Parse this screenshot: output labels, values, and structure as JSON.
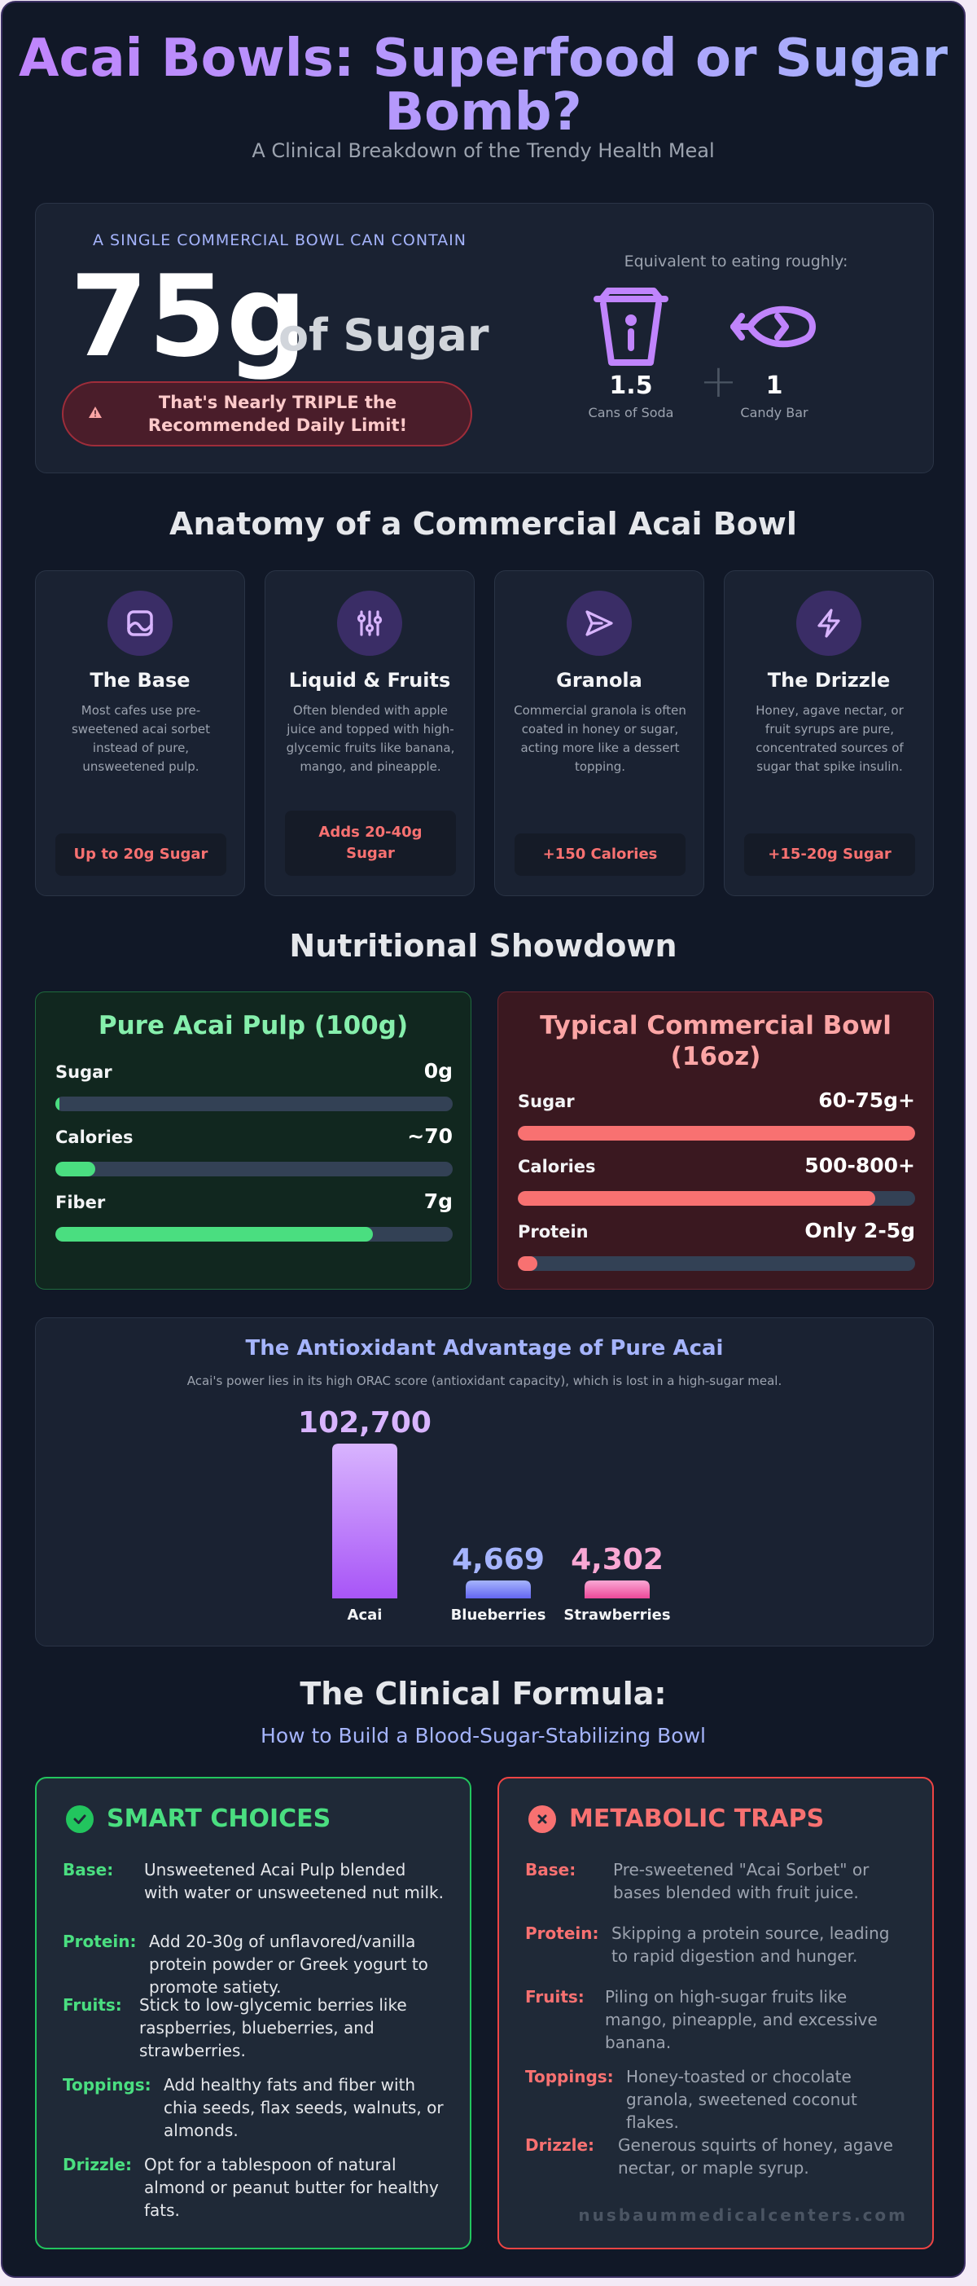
{
  "header": {
    "title": "Acai Bowls: Superfood or Sugar Bomb?",
    "subtitle": "A Clinical Breakdown of the Trendy Health Meal"
  },
  "hero": {
    "kicker": "A SINGLE COMMERCIAL BOWL CAN CONTAIN",
    "amount": "75g",
    "unit": "of Sugar",
    "warning": "That's Nearly TRIPLE the Recommended Daily Limit!",
    "equivalent_label": "Equivalent to eating roughly:",
    "equivalents": [
      {
        "icon": "soda-cup-icon",
        "value": "1.5",
        "label": "Cans of Soda"
      },
      {
        "icon": "candy-icon",
        "value": "1",
        "label": "Candy Bar"
      }
    ]
  },
  "anatomy": {
    "title": "Anatomy of a Commercial Acai Bowl",
    "cards": [
      {
        "icon": "base-icon",
        "title": "The Base",
        "desc": "Most cafes use pre-sweetened acai sorbet instead of pure, unsweetened pulp.",
        "tag": "Up to 20g Sugar"
      },
      {
        "icon": "sliders-icon",
        "title": "Liquid & Fruits",
        "desc": "Often blended with apple juice and topped with high-glycemic fruits like banana, mango, and pineapple.",
        "tag": "Adds 20-40g Sugar"
      },
      {
        "icon": "send-icon",
        "title": "Granola",
        "desc": "Commercial granola is often coated in honey or sugar, acting more like a dessert topping.",
        "tag": "+150 Calories"
      },
      {
        "icon": "lightning-icon",
        "title": "The Drizzle",
        "desc": "Honey, agave nectar, or fruit syrups are pure, concentrated sources of sugar that spike insulin.",
        "tag": "+15-20g Sugar"
      }
    ]
  },
  "showdown": {
    "title": "Nutritional Showdown",
    "pure": {
      "title": "Pure Acai Pulp (100g)",
      "rows": [
        {
          "label": "Sugar",
          "value": "0g",
          "level": 0.01
        },
        {
          "label": "Calories",
          "value": "~70",
          "level": 0.1
        },
        {
          "label": "Fiber",
          "value": "7g",
          "level": 0.8
        }
      ]
    },
    "commercial": {
      "title": "Typical Commercial Bowl (16oz)",
      "rows": [
        {
          "label": "Sugar",
          "value": "60-75g+",
          "level": 1.0
        },
        {
          "label": "Calories",
          "value": "500-800+",
          "level": 0.9
        },
        {
          "label": "Protein",
          "value": "Only 2-5g",
          "level": 0.05
        }
      ]
    }
  },
  "antioxidant": {
    "title": "The Antioxidant Advantage of Pure Acai",
    "subtitle": "Acai's power lies in its high ORAC score (antioxidant capacity), which is lost in a high-sugar meal."
  },
  "chart_data": {
    "type": "bar",
    "title": "The Antioxidant Advantage of Pure Acai",
    "categories": [
      "Acai",
      "Blueberries",
      "Strawberries"
    ],
    "values": [
      102700,
      4669,
      4302
    ],
    "value_labels": [
      "102,700",
      "4,669",
      "4,302"
    ],
    "colors": [
      "#a855f7",
      "#6366f1",
      "#ec4899"
    ],
    "label_colors": [
      "#d8b4fe",
      "#a5b4fc",
      "#f9a8d4"
    ],
    "xlabel": "",
    "ylabel": "",
    "grid": false
  },
  "formula": {
    "title": "The Clinical Formula:",
    "subtitle": "How to Build a Blood-Sugar-Stabilizing Bowl",
    "smart": {
      "title": "SMART CHOICES",
      "items": [
        {
          "label": "Base:",
          "text": "Unsweetened Acai Pulp blended with water or unsweetened nut milk."
        },
        {
          "label": "Protein:",
          "text": "Add 20-30g of unflavored/vanilla protein powder or Greek yogurt to promote satiety."
        },
        {
          "label": "Fruits:",
          "text": "Stick to low-glycemic berries like raspberries, blueberries, and strawberries."
        },
        {
          "label": "Toppings:",
          "text": "Add healthy fats and fiber with chia seeds, flax seeds, walnuts, or almonds."
        },
        {
          "label": "Drizzle:",
          "text": "Opt for a tablespoon of natural almond or peanut butter for healthy fats."
        }
      ]
    },
    "traps": {
      "title": "METABOLIC TRAPS",
      "items": [
        {
          "label": "Base:",
          "text": "Pre-sweetened \"Acai Sorbet\" or bases blended with fruit juice."
        },
        {
          "label": "Protein:",
          "text": "Skipping a protein source, leading to rapid digestion and hunger."
        },
        {
          "label": "Fruits:",
          "text": "Piling on high-sugar fruits like mango, pineapple, and excessive banana."
        },
        {
          "label": "Toppings:",
          "text": "Honey-toasted or chocolate granola, sweetened coconut flakes."
        },
        {
          "label": "Drizzle:",
          "text": "Generous squirts of honey, agave nectar, or maple syrup."
        }
      ]
    },
    "source": "nusbaummedicalcenters.com"
  }
}
